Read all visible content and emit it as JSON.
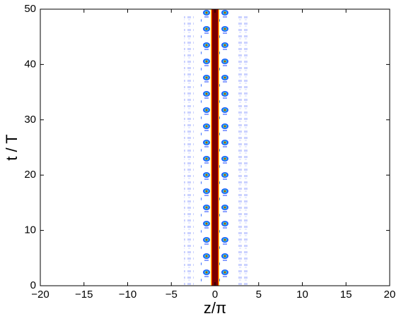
{
  "chart_data": {
    "type": "heatmap",
    "xlabel": "z/π",
    "ylabel": "t / T",
    "xlim": [
      -20,
      20
    ],
    "ylim": [
      0,
      50
    ],
    "xticks": [
      {
        "value": -20,
        "label": "−20"
      },
      {
        "value": -15,
        "label": "−15"
      },
      {
        "value": -10,
        "label": "−10"
      },
      {
        "value": -5,
        "label": "−5"
      },
      0,
      5,
      10,
      15,
      20
    ],
    "yticks": [
      0,
      10,
      20,
      30,
      40,
      50
    ]
  }
}
